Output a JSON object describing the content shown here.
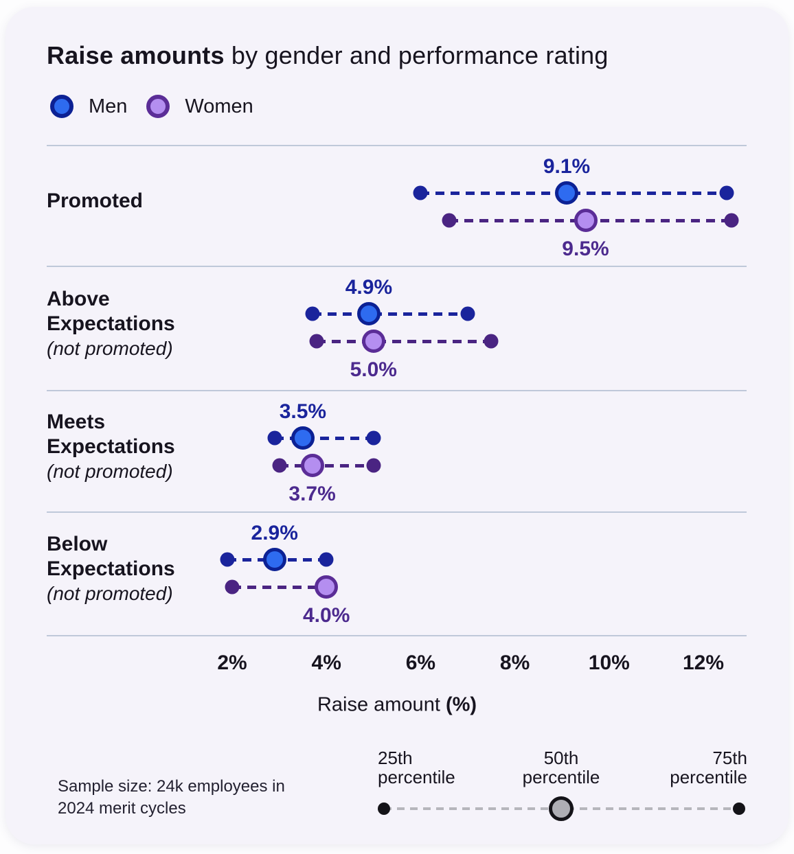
{
  "title": {
    "bold": "Raise amounts",
    "rest": " by gender and performance rating"
  },
  "legend": {
    "men": "Men",
    "women": "Women"
  },
  "x_axis": {
    "label_regular": "Raise amount ",
    "label_bold": "(%)"
  },
  "footnote": {
    "line1": "Sample size: 24k employees in",
    "line2": "2024 merit cycles"
  },
  "percentile_legend": {
    "p25": [
      "25th",
      "percentile"
    ],
    "p50": [
      "50th",
      "percentile"
    ],
    "p75": [
      "75th",
      "percentile"
    ]
  },
  "colors": {
    "card_bg": "#f5f3fa",
    "ink": "#17141f",
    "divider": "#bfc8d9",
    "men_fill": "#2e6bf0",
    "men_dark": "#1a249c",
    "men_border": "#0c2194",
    "women_fill": "#b48ef0",
    "women_dark": "#4a2482",
    "women_border": "#5b2d97",
    "women_label": "#4c2a8e",
    "gray_dark": "#141318",
    "gray_fill": "#aeaeb4",
    "gray_line": "#b6b6bc"
  },
  "chart_data": {
    "type": "dumbbell-dot-plot",
    "title": "Raise amounts by gender and performance rating",
    "xlabel": "Raise amount (%)",
    "legend_position": "top",
    "series_names": [
      "Men",
      "Women"
    ],
    "percentiles_shown": [
      "25th percentile",
      "50th percentile",
      "75th percentile"
    ],
    "x_axis": {
      "tick_labels": [
        "2%",
        "4%",
        "6%",
        "8%",
        "10%",
        "12%"
      ],
      "tick_values": [
        2,
        4,
        6,
        8,
        10,
        12
      ],
      "range": [
        1.5,
        13
      ]
    },
    "categories": [
      {
        "label": "Promoted",
        "sublabel": "",
        "men": {
          "p25": 6.0,
          "p50": 9.1,
          "p75": 12.5,
          "median_label": "9.1%"
        },
        "women": {
          "p25": 6.6,
          "p50": 9.5,
          "p75": 12.6,
          "median_label": "9.5%"
        }
      },
      {
        "label": "Above Expectations",
        "sublabel": "(not promoted)",
        "men": {
          "p25": 3.7,
          "p50": 4.9,
          "p75": 7.0,
          "median_label": "4.9%"
        },
        "women": {
          "p25": 3.8,
          "p50": 5.0,
          "p75": 7.5,
          "median_label": "5.0%"
        }
      },
      {
        "label": "Meets Expectations",
        "sublabel": "(not promoted)",
        "men": {
          "p25": 2.9,
          "p50": 3.5,
          "p75": 5.0,
          "median_label": "3.5%"
        },
        "women": {
          "p25": 3.0,
          "p50": 3.7,
          "p75": 5.0,
          "median_label": "3.7%"
        }
      },
      {
        "label": "Below Expectations",
        "sublabel": "(not promoted)",
        "men": {
          "p25": 1.9,
          "p50": 2.9,
          "p75": 4.0,
          "median_label": "2.9%"
        },
        "women": {
          "p25": 2.0,
          "p50": 4.0,
          "p75": 4.0,
          "median_label": "4.0%"
        }
      }
    ]
  }
}
